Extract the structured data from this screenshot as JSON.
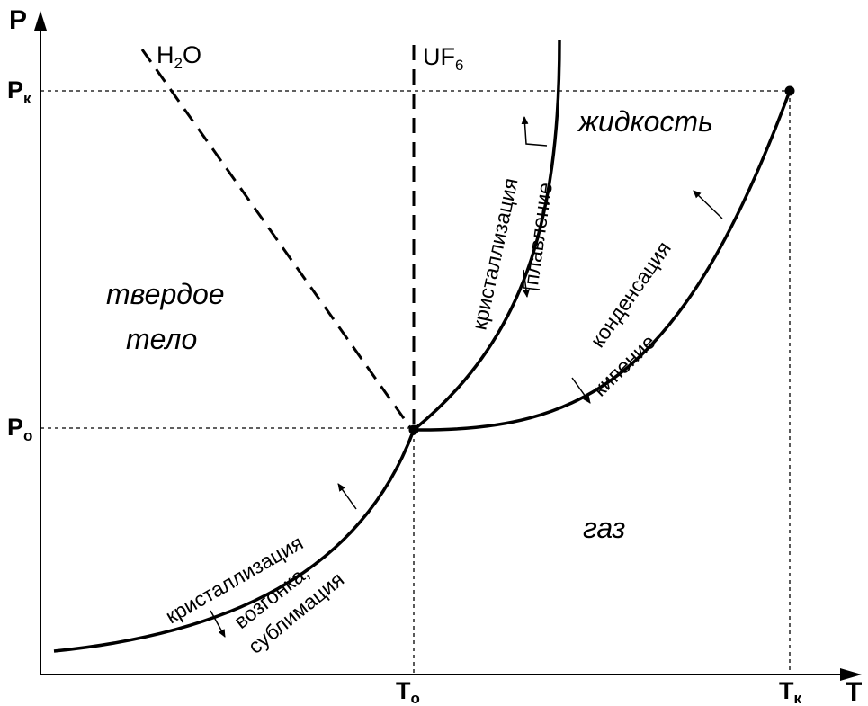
{
  "axes": {
    "y_label": "P",
    "x_label": "T",
    "p_critical": {
      "main": "P",
      "sub": "к"
    },
    "p_triple": {
      "main": "P",
      "sub": "o"
    },
    "t_triple": {
      "main": "T",
      "sub": "o"
    },
    "t_critical": {
      "main": "T",
      "sub": "к"
    }
  },
  "regions": {
    "solid_line1": "твердое",
    "solid_line2": "тело",
    "liquid": "жидкость",
    "gas": "газ"
  },
  "melting_lines": {
    "water": {
      "main": "H",
      "sub": "2",
      "rest": "O"
    },
    "uf6": {
      "main": "UF",
      "sub": "6"
    }
  },
  "curve_labels": {
    "melting_up": "кристаллизация",
    "melting_down": "плавление",
    "boiling_up": "конденсация",
    "boiling_down": "кипение",
    "sublimation_up": "кристаллизация",
    "sublimation_down_1": "возгонка,",
    "sublimation_down_2": "сублимация"
  },
  "colors": {
    "ink": "#000000",
    "background": "#ffffff"
  }
}
